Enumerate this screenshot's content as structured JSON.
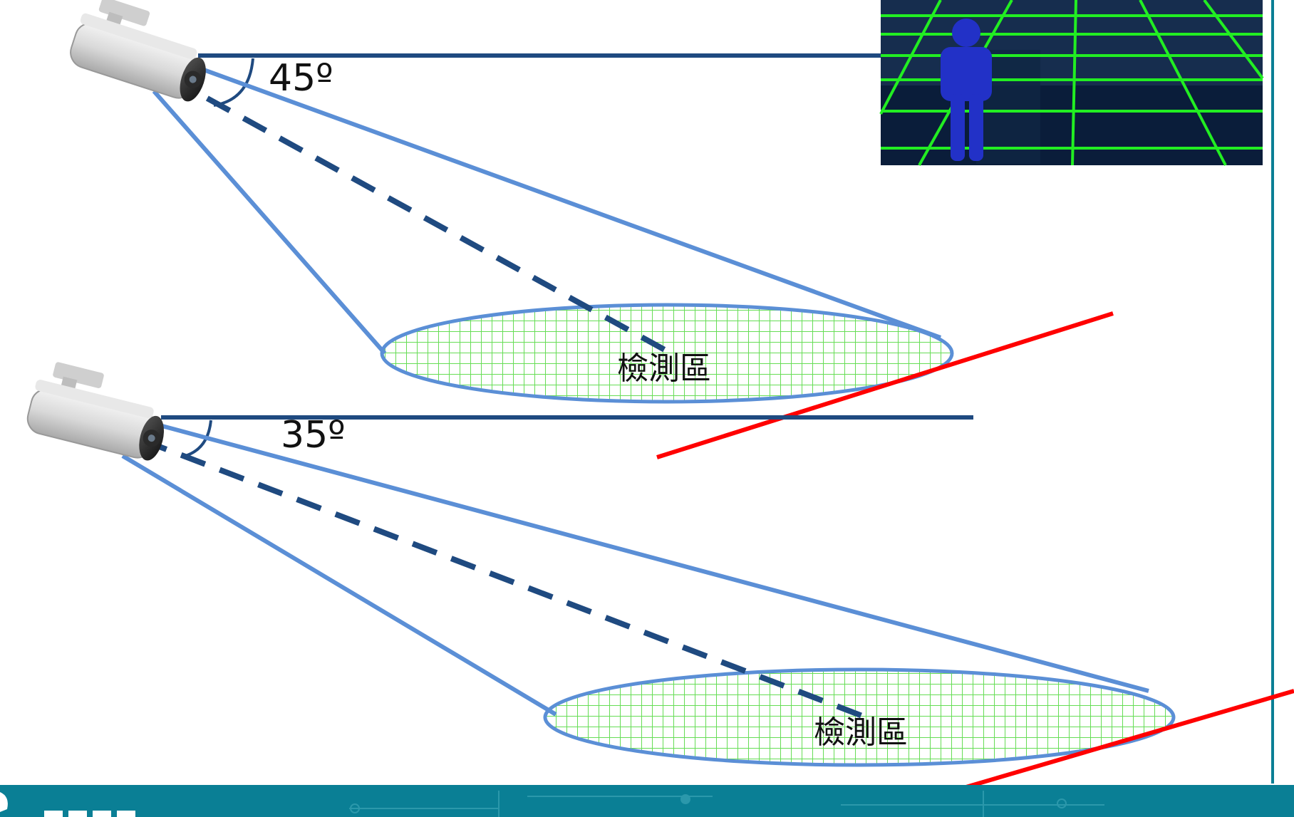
{
  "diagram": {
    "upper": {
      "angle_label": "45º",
      "zone_label": "檢測區"
    },
    "lower": {
      "angle_label": "35º",
      "zone_label": "檢測區"
    }
  },
  "colors": {
    "fov_line": "#5b8fd6",
    "dashed_axis": "#1f4a80",
    "horizon_line": "#1f4a80",
    "red_line": "#ff0000",
    "grid": "#66dd55",
    "footer": "#0a7f95"
  },
  "icons": {
    "camera": "bullet-security-camera",
    "person": "person-figure"
  }
}
